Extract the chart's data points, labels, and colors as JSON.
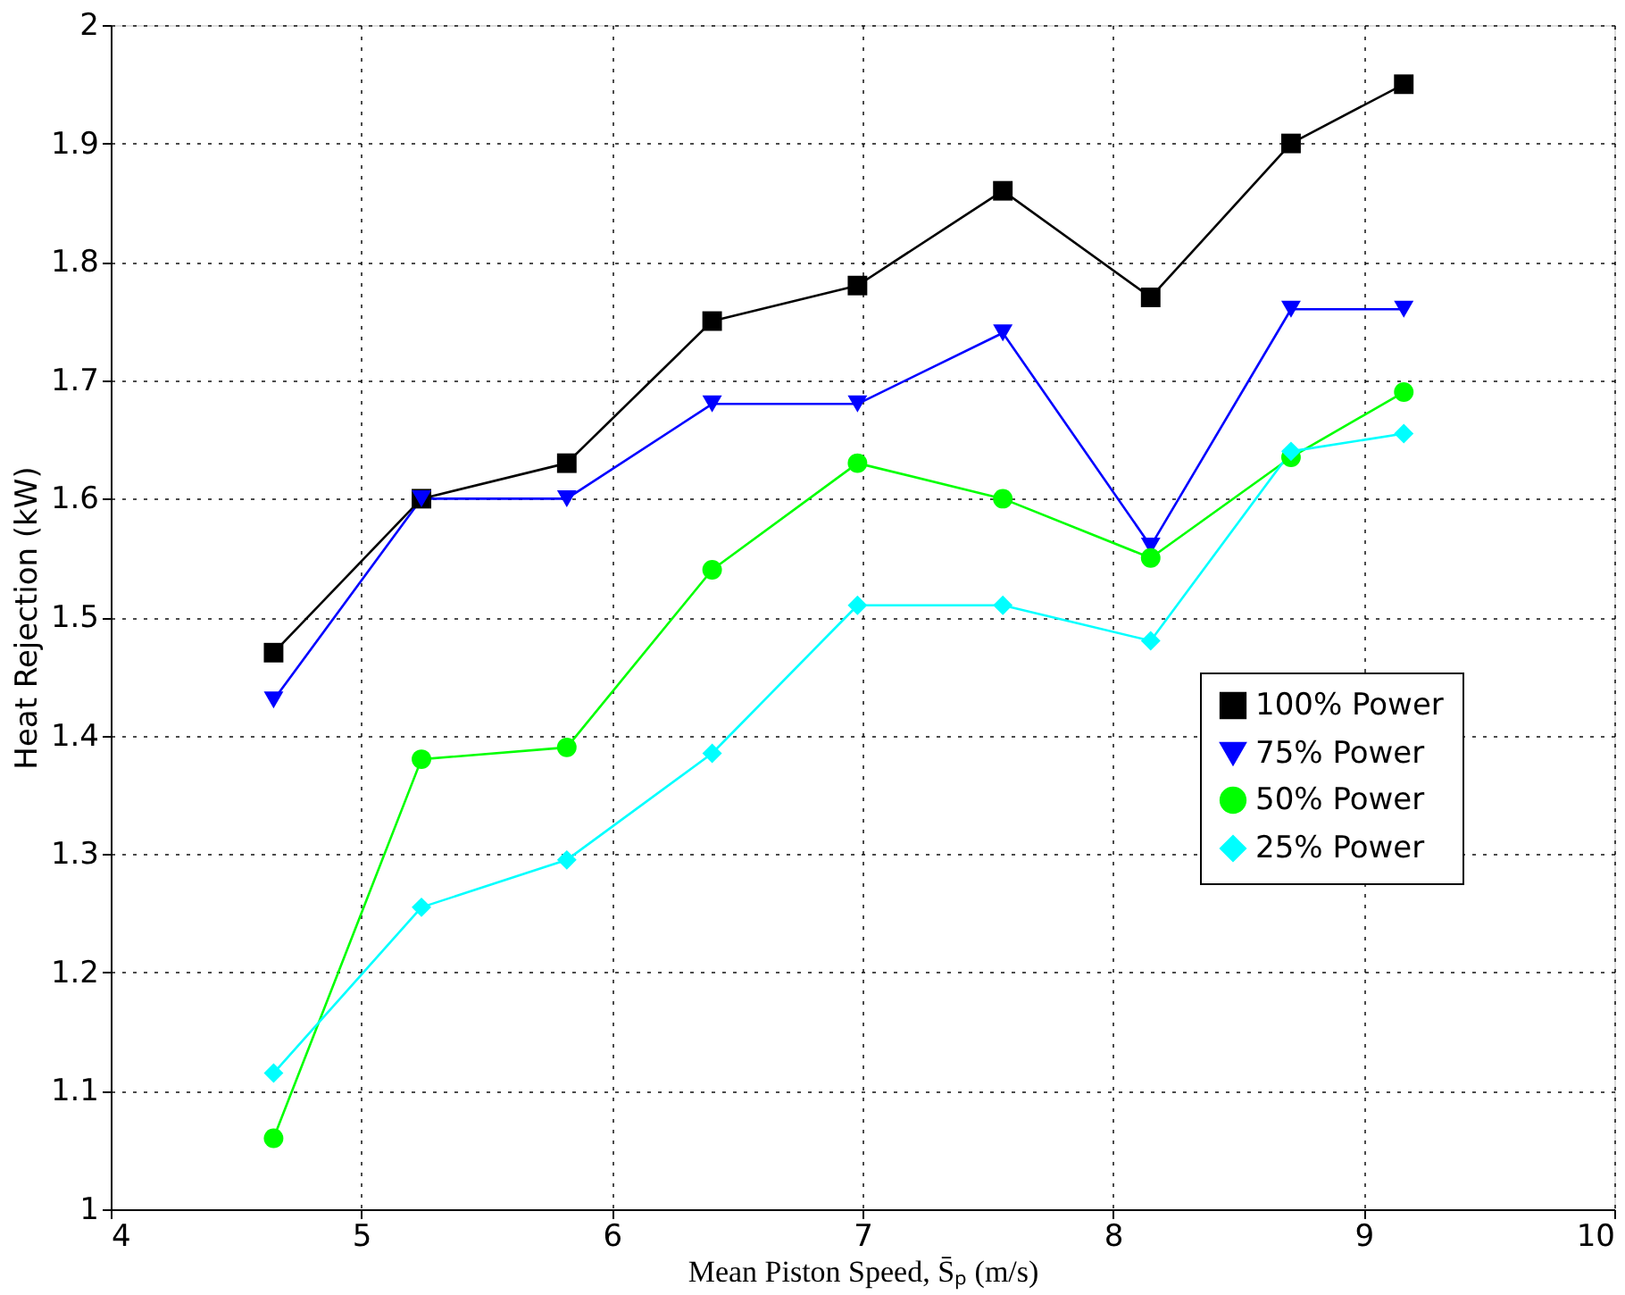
{
  "chart_data": {
    "type": "line",
    "xlabel": "Mean Piston Speed, S̄ₚ (m/s)",
    "ylabel": "Heat Rejection (kW)",
    "x": [
      4.65,
      5.24,
      5.82,
      6.4,
      6.98,
      7.56,
      8.15,
      8.71,
      9.16
    ],
    "series": [
      {
        "name": "100% Power",
        "color": "#000000",
        "marker": "square",
        "values": [
          1.47,
          1.6,
          1.63,
          1.75,
          1.78,
          1.86,
          1.77,
          1.9,
          1.95
        ]
      },
      {
        "name": "75% Power",
        "color": "#0000ff",
        "marker": "triangle-down",
        "values": [
          1.43,
          1.6,
          1.6,
          1.68,
          1.68,
          1.74,
          1.56,
          1.76,
          1.76
        ]
      },
      {
        "name": "50% Power",
        "color": "#00ff00",
        "marker": "circle",
        "values": [
          1.06,
          1.38,
          1.39,
          1.54,
          1.63,
          1.6,
          1.55,
          1.635,
          1.69
        ]
      },
      {
        "name": "25% Power",
        "color": "#00ffff",
        "marker": "diamond",
        "values": [
          1.115,
          1.255,
          1.295,
          1.385,
          1.51,
          1.51,
          1.48,
          1.64,
          1.655
        ]
      }
    ],
    "xlim": [
      4,
      10
    ],
    "xticks": [
      4,
      5,
      6,
      7,
      8,
      9,
      10
    ],
    "ylim": [
      1,
      2
    ],
    "yticks": [
      1,
      1.1,
      1.2,
      1.3,
      1.4,
      1.5,
      1.6,
      1.7,
      1.8,
      1.9,
      2
    ],
    "grid": true,
    "legend": "right",
    "line_style": "solid"
  }
}
